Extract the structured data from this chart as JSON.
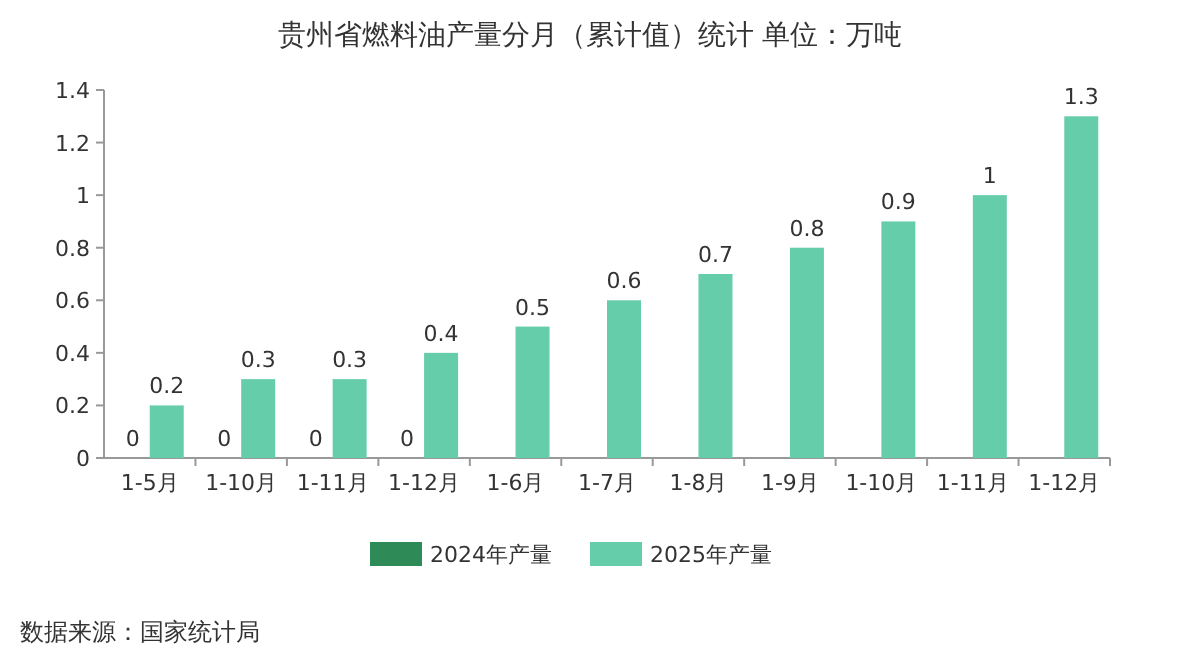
{
  "chart_data": {
    "type": "bar",
    "title": "贵州省燃料油产量分月（累计值）统计 单位：万吨",
    "categories": [
      "1-5月",
      "1-10月",
      "1-11月",
      "1-12月",
      "1-6月",
      "1-7月",
      "1-8月",
      "1-9月",
      "1-10月",
      "1-11月",
      "1-12月"
    ],
    "series": [
      {
        "name": "2024年产量",
        "color": "#2e8b57",
        "values": [
          0,
          0,
          0,
          0,
          null,
          null,
          null,
          null,
          null,
          null,
          null
        ]
      },
      {
        "name": "2025年产量",
        "color": "#66cdaa",
        "values": [
          0.2,
          0.3,
          0.3,
          0.4,
          0.5,
          0.6,
          0.7,
          0.8,
          0.9,
          1,
          1.3
        ]
      }
    ],
    "ylim": [
      0,
      1.4
    ],
    "yticks": [
      0,
      0.2,
      0.4,
      0.6,
      0.8,
      1,
      1.2,
      1.4
    ],
    "data_labels": true,
    "legend": "bottom",
    "annotations": [
      "数据来源：国家统计局"
    ]
  }
}
